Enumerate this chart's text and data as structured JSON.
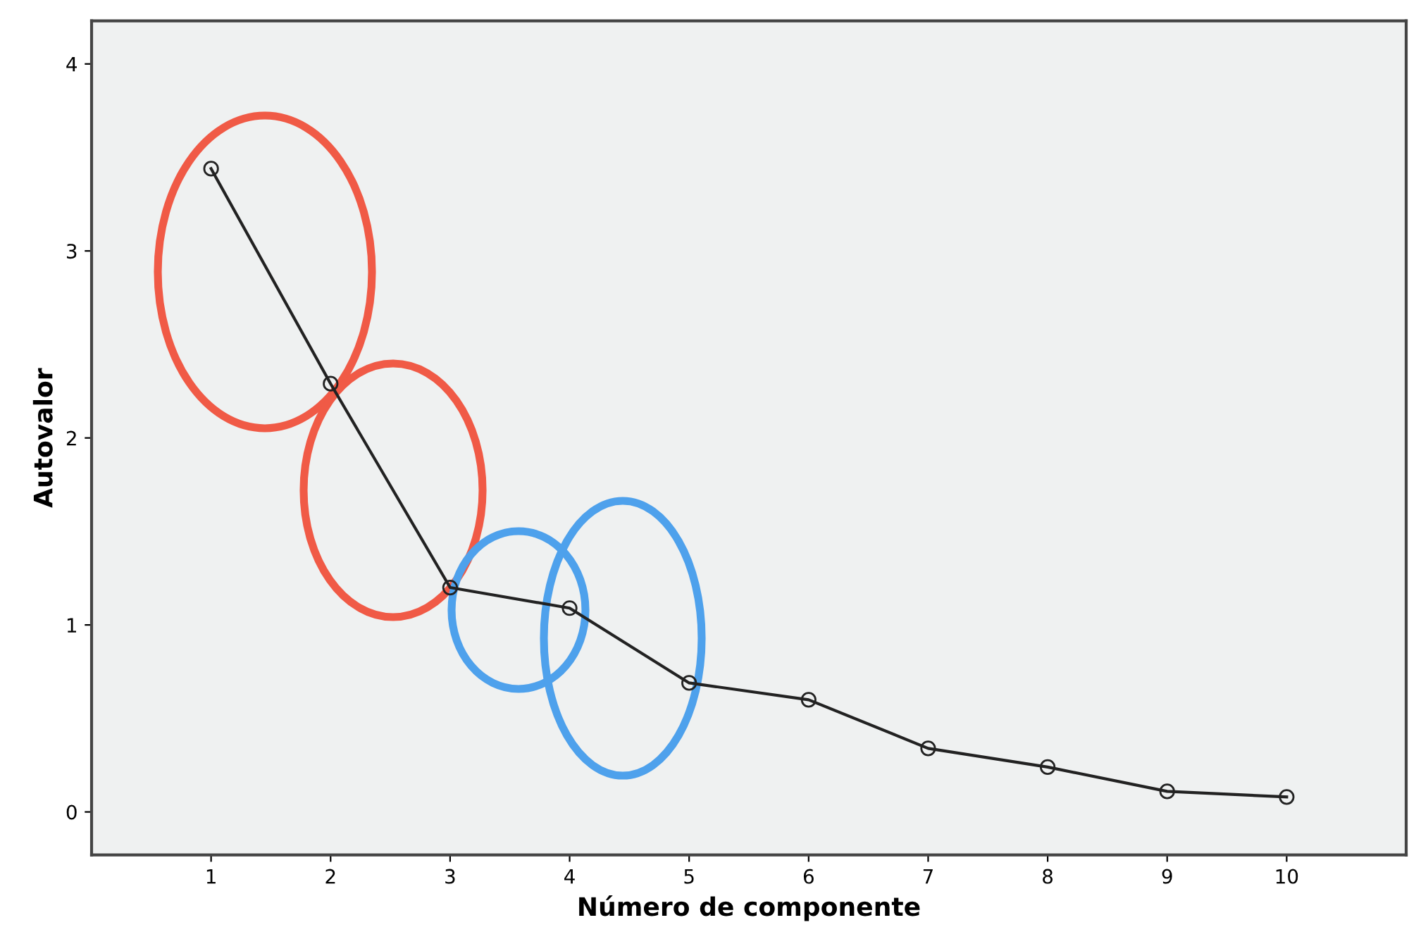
{
  "chart_data": {
    "type": "line",
    "x": [
      1,
      2,
      3,
      4,
      5,
      6,
      7,
      8,
      9,
      10
    ],
    "values": [
      3.44,
      2.29,
      1.2,
      1.09,
      0.69,
      0.6,
      0.34,
      0.24,
      0.11,
      0.08
    ],
    "color": "#222222",
    "marker": "circle",
    "line_style": "solid",
    "xlabel": "Número de componente",
    "ylabel": "Autovalor",
    "xlim": [
      0,
      11
    ],
    "ylim": [
      -0.23,
      4.23
    ],
    "xticks": [
      1,
      2,
      3,
      4,
      5,
      6,
      7,
      8,
      9,
      10
    ],
    "yticks": [
      0,
      1,
      2,
      3,
      4
    ],
    "grid": false
  }
}
